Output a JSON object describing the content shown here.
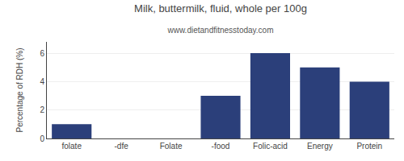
{
  "chart_data": {
    "type": "bar",
    "title": "Milk, buttermilk, fluid, whole per 100g",
    "subtitle": "www.dietandfitnesstoday.com",
    "categories": [
      "folate",
      "-dfe",
      "Folate",
      "-food",
      "Folic-acid",
      "Energy",
      "Protein"
    ],
    "values": [
      1.0,
      0.0,
      0.0,
      3.0,
      6.0,
      5.0,
      4.0
    ],
    "color": "#2b3f7a",
    "ylabel": "Percentage of RDH (%)",
    "ylim": [
      0,
      6.8
    ],
    "yticks": [
      0,
      2,
      4,
      6
    ],
    "grid": true
  }
}
